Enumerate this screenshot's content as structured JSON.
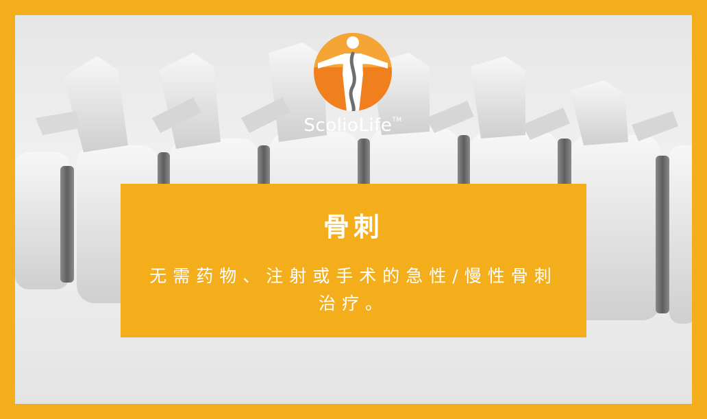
{
  "brand": {
    "name": "ScolioLife",
    "trademark": "TM"
  },
  "banner": {
    "title": "骨刺",
    "subtitle": "无需药物、注射或手术的急性/慢性骨刺治疗。"
  },
  "colors": {
    "frame": "#f4ae1c",
    "logo_orange": "#f07f1e",
    "logo_white": "#ffffff",
    "spine_gray": "#6e6e6e"
  },
  "icons": [
    "scoliolife-logo-icon",
    "spine-illustration"
  ]
}
